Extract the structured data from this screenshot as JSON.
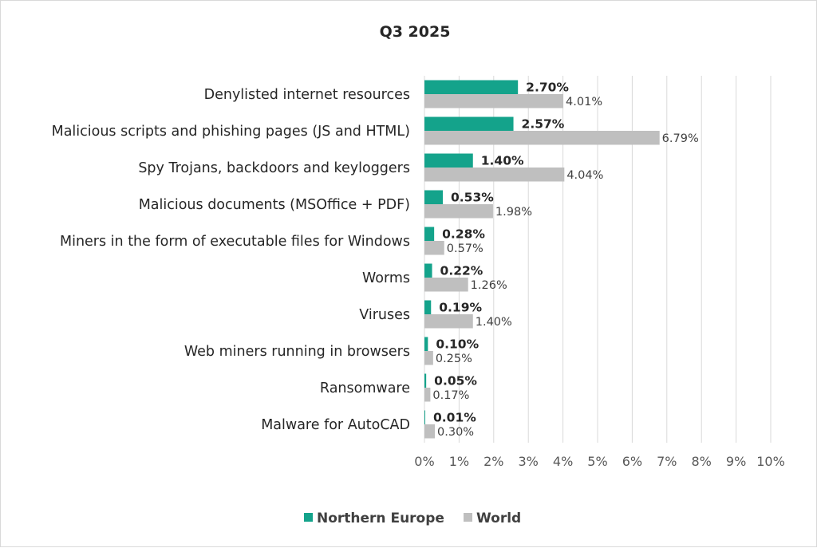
{
  "chart_data": {
    "type": "bar",
    "orientation": "horizontal",
    "title": "Q3 2025",
    "categories": [
      "Denylisted internet resources",
      "Malicious scripts and phishing pages (JS and HTML)",
      "Spy Trojans, backdoors and keyloggers",
      "Malicious documents (MSOffice + PDF)",
      "Miners in the form of executable files for Windows",
      "Worms",
      "Viruses",
      "Web miners running in browsers",
      "Ransomware",
      "Malware for AutoCAD"
    ],
    "series": [
      {
        "name": "Northern Europe",
        "color": "#14a38b",
        "values": [
          2.7,
          2.57,
          1.4,
          0.53,
          0.28,
          0.22,
          0.19,
          0.1,
          0.05,
          0.01
        ],
        "labels": [
          "2.70%",
          "2.57%",
          "1.40%",
          "0.53%",
          "0.28%",
          "0.22%",
          "0.19%",
          "0.10%",
          "0.05%",
          "0.01%"
        ]
      },
      {
        "name": "World",
        "color": "#bfbfbf",
        "values": [
          4.01,
          6.79,
          4.04,
          1.98,
          0.57,
          1.26,
          1.4,
          0.25,
          0.17,
          0.3
        ],
        "labels": [
          "4.01%",
          "6.79%",
          "4.04%",
          "1.98%",
          "0.57%",
          "1.26%",
          "1.40%",
          "0.25%",
          "0.17%",
          "0.30%"
        ]
      }
    ],
    "xlim": [
      0,
      10
    ],
    "xticks": [
      "0%",
      "1%",
      "2%",
      "3%",
      "4%",
      "5%",
      "6%",
      "7%",
      "8%",
      "9%",
      "10%"
    ],
    "grid": "vertical",
    "gridline_color": "#d9d9d9",
    "legend": "bottom-center"
  }
}
